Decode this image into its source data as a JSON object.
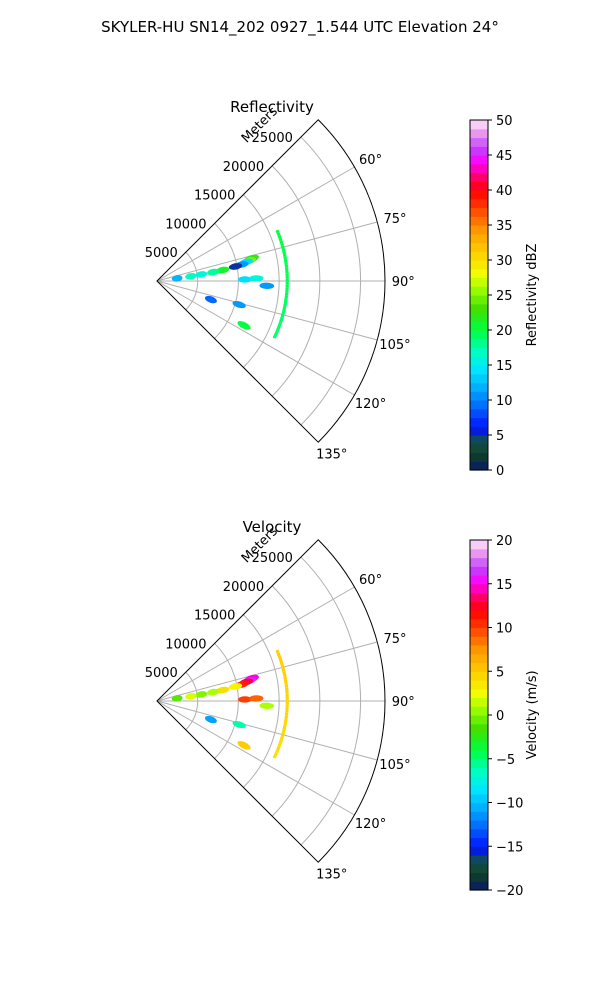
{
  "suptitle": "SKYLER-HU  SN14_202  0927_1.544 UTC Elevation 24°",
  "chart_data": [
    {
      "type": "polar-sector",
      "title": "Reflectivity",
      "range_label": "Meters",
      "range_ticks": [
        "5000",
        "10000",
        "15000",
        "20000",
        "25000"
      ],
      "range_values": [
        5000,
        10000,
        15000,
        20000,
        25000
      ],
      "range_max": 28000,
      "theta_range": [
        45,
        135
      ],
      "theta_ticks": [
        "60°",
        "75°",
        "90°",
        "105°",
        "120°",
        "135°"
      ],
      "theta_values": [
        60,
        75,
        90,
        105,
        120,
        135
      ],
      "grid": true,
      "colorbar": {
        "label": "Reflectivity dBZ",
        "min": 0,
        "max": 50,
        "ticks": [
          "0",
          "5",
          "10",
          "15",
          "20",
          "25",
          "30",
          "35",
          "40",
          "45",
          "50"
        ]
      },
      "echoes": [
        {
          "theta": 77,
          "range": 11800,
          "value": 8
        },
        {
          "theta": 76.5,
          "range": 12000,
          "value": 22
        },
        {
          "theta": 77.5,
          "range": 11600,
          "value": 25
        },
        {
          "theta": 78,
          "range": 11200,
          "value": 14
        },
        {
          "theta": 79,
          "range": 10600,
          "value": 11
        },
        {
          "theta": 79.5,
          "range": 9800,
          "value": 5
        },
        {
          "theta": 80.5,
          "range": 8200,
          "value": 21
        },
        {
          "theta": 81,
          "range": 7000,
          "value": 18
        },
        {
          "theta": 81.5,
          "range": 5500,
          "value": 16
        },
        {
          "theta": 82,
          "range": 4200,
          "value": 17
        },
        {
          "theta": 82.5,
          "range": 2500,
          "value": 12
        },
        {
          "theta": 89,
          "range": 10800,
          "value": 14
        },
        {
          "theta": 88.5,
          "range": 12200,
          "value": 16
        },
        {
          "theta": 92.5,
          "range": 13500,
          "value": 11
        },
        {
          "theta": 106,
          "range": 10500,
          "value": 11
        },
        {
          "theta": 109,
          "range": 7000,
          "value": 9
        },
        {
          "theta": 117,
          "range": 12000,
          "value": 20
        }
      ],
      "arc": {
        "range": 16000,
        "theta_start": 67,
        "theta_end": 116,
        "value_start": 20,
        "value_end": 19
      }
    },
    {
      "type": "polar-sector",
      "title": "Velocity",
      "range_label": "Meters",
      "range_ticks": [
        "5000",
        "10000",
        "15000",
        "20000",
        "25000"
      ],
      "range_values": [
        5000,
        10000,
        15000,
        20000,
        25000
      ],
      "range_max": 28000,
      "theta_range": [
        45,
        135
      ],
      "theta_ticks": [
        "60°",
        "75°",
        "90°",
        "105°",
        "120°",
        "135°"
      ],
      "theta_values": [
        60,
        75,
        90,
        105,
        120,
        135
      ],
      "grid": true,
      "colorbar": {
        "label": "Velocity (m/s)",
        "min": -20,
        "max": 20,
        "ticks": [
          "−20",
          "−15",
          "−10",
          "−5",
          "0",
          "5",
          "10",
          "15",
          "20"
        ]
      },
      "echoes": [
        {
          "theta": 77,
          "range": 11800,
          "value": 14
        },
        {
          "theta": 76.5,
          "range": 12000,
          "value": 15
        },
        {
          "theta": 77.5,
          "range": 11600,
          "value": 16
        },
        {
          "theta": 78,
          "range": 11200,
          "value": 13
        },
        {
          "theta": 79,
          "range": 10600,
          "value": 11
        },
        {
          "theta": 79.5,
          "range": 9800,
          "value": 3
        },
        {
          "theta": 80.5,
          "range": 8200,
          "value": 4
        },
        {
          "theta": 81,
          "range": 7000,
          "value": 1
        },
        {
          "theta": 81.5,
          "range": 5500,
          "value": 0
        },
        {
          "theta": 82,
          "range": 4200,
          "value": 2
        },
        {
          "theta": 82.5,
          "range": 2500,
          "value": -1
        },
        {
          "theta": 89,
          "range": 10800,
          "value": 10
        },
        {
          "theta": 88.5,
          "range": 12200,
          "value": 9
        },
        {
          "theta": 92.5,
          "range": 13500,
          "value": 1
        },
        {
          "theta": 106,
          "range": 10500,
          "value": -6
        },
        {
          "theta": 109,
          "range": 7000,
          "value": -11
        },
        {
          "theta": 117,
          "range": 12000,
          "value": 5
        }
      ],
      "arc": {
        "range": 16000,
        "theta_start": 67,
        "theta_end": 116,
        "value_start": 5,
        "value_end": 4
      }
    }
  ]
}
